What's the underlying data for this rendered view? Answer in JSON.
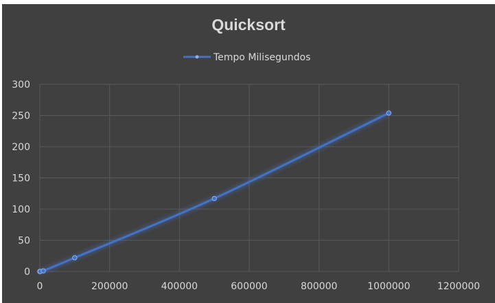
{
  "chart_data": {
    "type": "scatter",
    "title": "Quicksort",
    "xlabel": "",
    "ylabel": "",
    "legend": {
      "placement": "top",
      "entries": [
        "Tempo Milisegundos"
      ]
    },
    "series": [
      {
        "name": "Tempo Milisegundos",
        "color": "#4472c4",
        "x": [
          10,
          100,
          1000,
          10000,
          100000,
          500000,
          1000000
        ],
        "y": [
          0,
          0,
          0,
          1,
          22,
          117,
          254
        ]
      }
    ],
    "xlim": [
      0,
      1200000
    ],
    "ylim": [
      0,
      300
    ],
    "xticks": [
      0,
      200000,
      400000,
      600000,
      800000,
      1000000,
      1200000
    ],
    "yticks": [
      0,
      50,
      100,
      150,
      200,
      250,
      300
    ],
    "xtick_labels": [
      "0",
      "200000",
      "400000",
      "600000",
      "800000",
      "1000000",
      "1200000"
    ],
    "ytick_labels": [
      "0",
      "50",
      "100",
      "150",
      "200",
      "250",
      "300"
    ],
    "grid": true,
    "line_style": "smooth-with-markers"
  },
  "colors": {
    "background": "#404040",
    "gridline": "#595959",
    "text": "#d9d9d9",
    "series": "#4472c4"
  }
}
